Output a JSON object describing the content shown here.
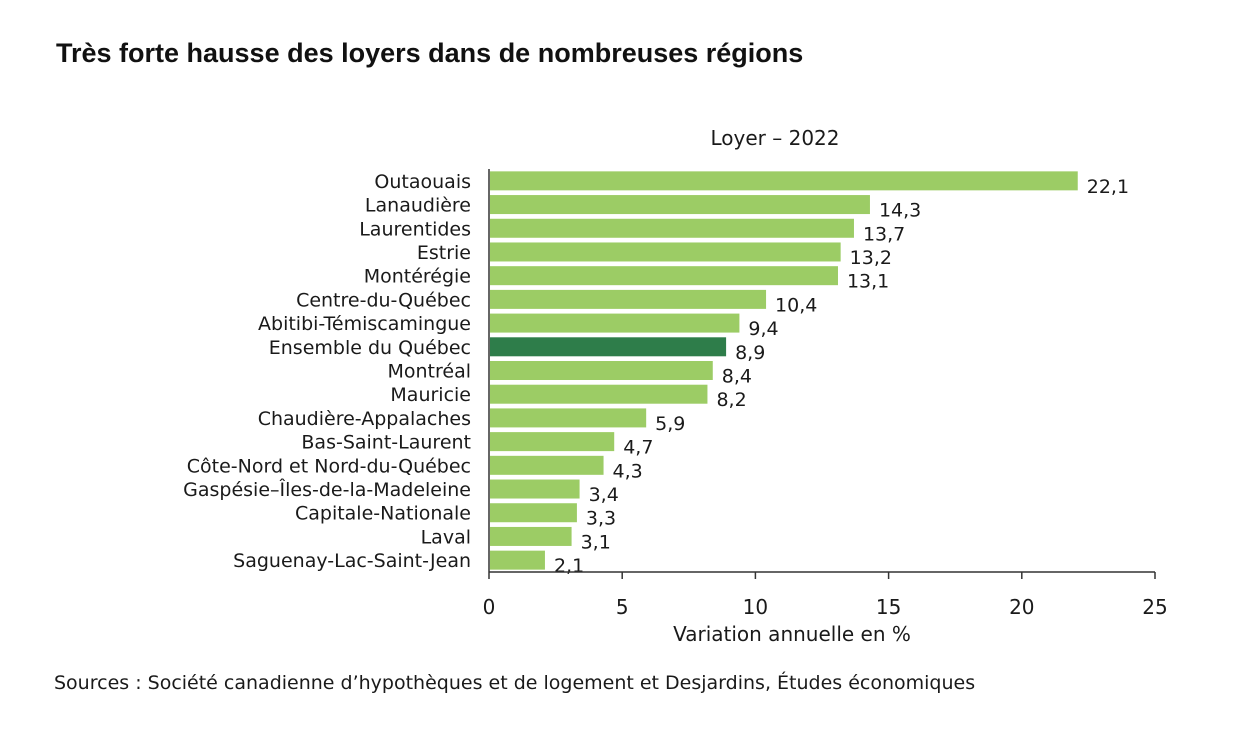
{
  "header": {
    "title": "Très forte hausse des loyers dans de nombreuses régions"
  },
  "footer": {
    "source": "Sources : Société canadienne d’hypothèques et de logement et Desjardins, Études économiques"
  },
  "chart_data": {
    "type": "bar",
    "orientation": "horizontal",
    "subtitle": "Loyer – 2022",
    "xlabel": "Variation annuelle en %",
    "ylabel": "",
    "xlim": [
      0,
      25
    ],
    "xticks": [
      0,
      5,
      10,
      15,
      20,
      25
    ],
    "grid": false,
    "categories": [
      "Outaouais",
      "Lanaudière",
      "Laurentides",
      "Estrie",
      "Montérégie",
      "Centre-du-Québec",
      "Abitibi-Témiscamingue",
      "Ensemble du Québec",
      "Montréal",
      "Mauricie",
      "Chaudière-Appalaches",
      "Bas-Saint-Laurent",
      "Côte-Nord et Nord-du-Québec",
      "Gaspésie–Îles-de-la-Madeleine",
      "Capitale-Nationale",
      "Laval",
      "Saguenay-Lac-Saint-Jean"
    ],
    "values": [
      22.1,
      14.3,
      13.7,
      13.2,
      13.1,
      10.4,
      9.4,
      8.9,
      8.4,
      8.2,
      5.9,
      4.7,
      4.3,
      3.4,
      3.3,
      3.1,
      2.1
    ],
    "value_labels": [
      "22,1",
      "14,3",
      "13,7",
      "13,2",
      "13,1",
      "10,4",
      "9,4",
      "8,9",
      "8,4",
      "8,2",
      "5,9",
      "4,7",
      "4,3",
      "3,4",
      "3,3",
      "3,1",
      "2,1"
    ],
    "colors": {
      "bar": "#9ccc65",
      "highlight": "#2e7d4a",
      "axis": "#333333"
    },
    "highlight_category": "Ensemble du Québec"
  }
}
